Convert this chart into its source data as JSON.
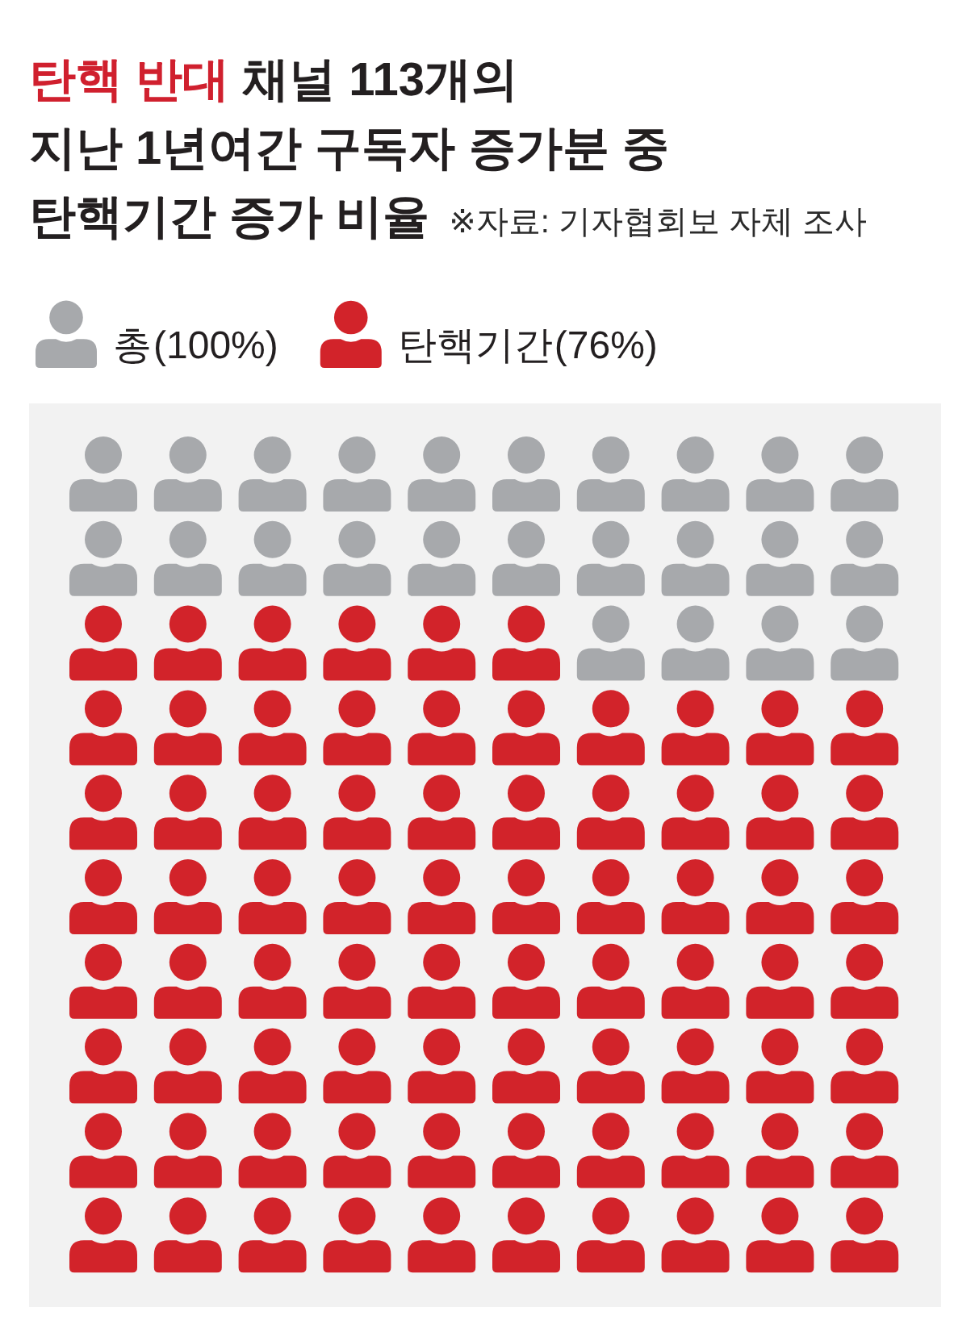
{
  "chart_data": {
    "type": "other",
    "title": "탄핵 반대 채널 113개의\n지난 1년여간 구독자 증가분 중\n탄핵기간 증가 비율",
    "categories": [
      "총",
      "탄핵기간"
    ],
    "values": [
      100,
      76
    ],
    "value_labels": [
      "(100%)",
      "(76%)"
    ],
    "colors": [
      "#a7a9ac",
      "#d2232a"
    ],
    "annotations": [
      "※자료: 기자협회보 자체 조사"
    ]
  }
}
